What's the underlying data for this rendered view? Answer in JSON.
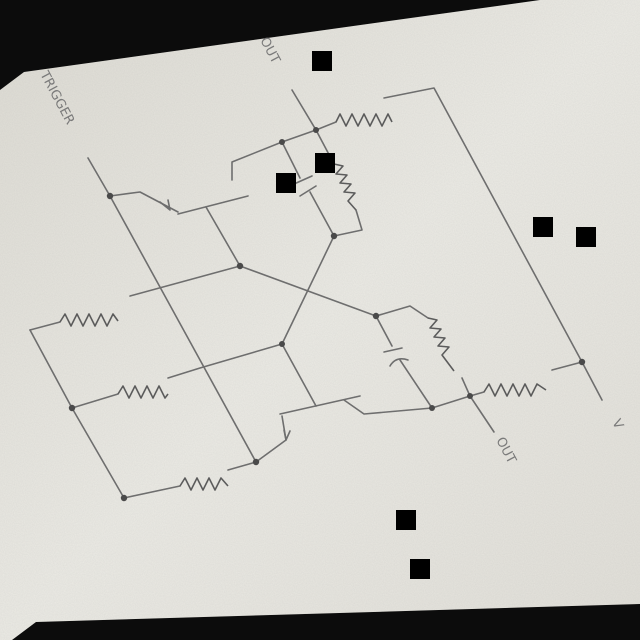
{
  "labels": {
    "trigger": "TRIGGER",
    "out_top": "OUT",
    "out_bottom": "OUT",
    "supply": "V"
  },
  "colors": {
    "paper": "#e6e4dd",
    "pencil": "#6e6e6e",
    "background": "#0c0c0c",
    "redaction": "#000000"
  },
  "components": [
    "transistor",
    "transistor",
    "resistor",
    "resistor",
    "resistor",
    "resistor",
    "resistor",
    "resistor",
    "capacitor",
    "capacitor"
  ]
}
